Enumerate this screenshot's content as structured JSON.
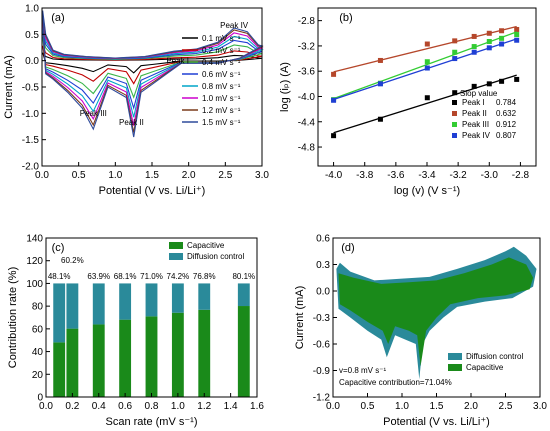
{
  "chart_data": [
    {
      "panel": "(a)",
      "type": "line",
      "xlabel": "Potential (V vs. Li/Li⁺)",
      "ylabel": "Current (mA)",
      "xlim": [
        0.0,
        3.0
      ],
      "ylim": [
        -2.0,
        1.0
      ],
      "xticks": [
        "0.0",
        "0.5",
        "1.0",
        "1.5",
        "2.0",
        "2.5",
        "3.0"
      ],
      "yticks": [
        "-2.0",
        "-1.5",
        "-1.0",
        "-0.5",
        "0.0",
        "0.5",
        "1.0"
      ],
      "legend_position": "right",
      "annotations": [
        {
          "text": "Peak IV",
          "x": 2.62,
          "y": 0.62
        },
        {
          "text": "Peak I",
          "x": 1.85,
          "y": -0.05
        },
        {
          "text": "Peak III",
          "x": 0.7,
          "y": -1.05
        },
        {
          "text": "Peak II",
          "x": 1.22,
          "y": -1.22
        }
      ],
      "series": [
        {
          "name": "0.1 mV s⁻¹",
          "color": "#000000",
          "scale": 0.16
        },
        {
          "name": "0.2 mV s⁻¹",
          "color": "#c00000",
          "scale": 0.3
        },
        {
          "name": "0.4 mV s⁻¹",
          "color": "#39b54a",
          "scale": 0.48
        },
        {
          "name": "0.6 mV s⁻¹",
          "color": "#1f3fd4",
          "scale": 0.62
        },
        {
          "name": "0.8 mV s⁻¹",
          "color": "#00a5c8",
          "scale": 0.74
        },
        {
          "name": "1.0 mV s⁻¹",
          "color": "#cc00cc",
          "scale": 0.85
        },
        {
          "name": "1.2 mV s⁻¹",
          "color": "#7a3a1a",
          "scale": 0.94
        },
        {
          "name": "1.5 mV s⁻¹",
          "color": "#2e4a9a",
          "scale": 1.0
        }
      ],
      "base_curve": {
        "upper": [
          [
            0.01,
            0.95
          ],
          [
            0.05,
            0.5
          ],
          [
            0.15,
            0.2
          ],
          [
            0.3,
            0.12
          ],
          [
            0.6,
            0.08
          ],
          [
            1.0,
            0.05
          ],
          [
            1.4,
            0.08
          ],
          [
            1.8,
            0.18
          ],
          [
            2.1,
            0.22
          ],
          [
            2.4,
            0.35
          ],
          [
            2.62,
            0.62
          ],
          [
            2.8,
            0.55
          ],
          [
            2.95,
            0.3
          ],
          [
            3.0,
            0.28
          ]
        ],
        "lower": [
          [
            3.0,
            0.28
          ],
          [
            2.7,
            0.05
          ],
          [
            2.4,
            -0.05
          ],
          [
            2.1,
            -0.05
          ],
          [
            1.9,
            -0.05
          ],
          [
            1.7,
            -0.25
          ],
          [
            1.5,
            -0.45
          ],
          [
            1.35,
            -0.6
          ],
          [
            1.25,
            -1.45
          ],
          [
            1.15,
            -0.7
          ],
          [
            0.9,
            -0.5
          ],
          [
            0.7,
            -1.3
          ],
          [
            0.55,
            -0.9
          ],
          [
            0.35,
            -0.6
          ],
          [
            0.15,
            -0.35
          ],
          [
            0.05,
            -0.25
          ],
          [
            0.01,
            0.95
          ]
        ]
      }
    },
    {
      "panel": "(b)",
      "type": "scatter",
      "xlabel": "log (v) (V s⁻¹)",
      "ylabel": "log (iₚ) (A)",
      "xlim": [
        -4.1,
        -2.7
      ],
      "ylim": [
        -5.1,
        -2.6
      ],
      "xticks": [
        "-4.0",
        "-3.8",
        "-3.6",
        "-3.4",
        "-3.2",
        "-3.0",
        "-2.8"
      ],
      "yticks": [
        "-4.8",
        "-4.4",
        "-4.0",
        "-3.6",
        "-3.2",
        "-2.8"
      ],
      "x": [
        -4.0,
        -3.699,
        -3.398,
        -3.222,
        -3.097,
        -3.0,
        -2.921,
        -2.824
      ],
      "legend_title": "Slop value",
      "legend_position": "bottom-right",
      "series": [
        {
          "name": "Peak I",
          "slope": "0.784",
          "color": "#000000",
          "values": [
            -4.62,
            -4.36,
            -4.02,
            -3.94,
            -3.84,
            -3.8,
            -3.76,
            -3.73
          ]
        },
        {
          "name": "Peak II",
          "slope": "0.632",
          "color": "#b5472b",
          "values": [
            -3.65,
            -3.43,
            -3.17,
            -3.12,
            -3.05,
            -3.0,
            -2.96,
            -2.94
          ]
        },
        {
          "name": "Peak III",
          "slope": "0.912",
          "color": "#33cc33",
          "values": [
            -4.05,
            -3.79,
            -3.45,
            -3.3,
            -3.21,
            -3.13,
            -3.08,
            -3.02
          ]
        },
        {
          "name": "Peak IV",
          "slope": "0.807",
          "color": "#1f3fd4",
          "values": [
            -4.06,
            -3.8,
            -3.55,
            -3.4,
            -3.3,
            -3.23,
            -3.17,
            -3.11
          ]
        }
      ]
    },
    {
      "panel": "(c)",
      "type": "bar",
      "xlabel": "Scan rate (mV s⁻¹)",
      "ylabel": "Contribution rate (%)",
      "xlim": [
        0.0,
        1.6
      ],
      "ylim": [
        0,
        140
      ],
      "xticks": [
        "0.0",
        "0.2",
        "0.4",
        "0.6",
        "0.8",
        "1.0",
        "1.2",
        "1.4",
        "1.6"
      ],
      "yticks": [
        "0",
        "20",
        "40",
        "60",
        "80",
        "100",
        "120",
        "140"
      ],
      "x": [
        0.1,
        0.2,
        0.4,
        0.6,
        0.8,
        1.0,
        1.2,
        1.5
      ],
      "data_labels": [
        "48.1%",
        "60.2%",
        "63.9%",
        "68.1%",
        "71.0%",
        "74.2%",
        "76.8%",
        "80.1%"
      ],
      "legend_position": "top-right",
      "series": [
        {
          "name": "Capacitive",
          "color": "#1a8a1a",
          "values": [
            48.1,
            60.2,
            63.9,
            68.1,
            71.0,
            74.2,
            76.8,
            80.1
          ]
        },
        {
          "name": "Diffusion control",
          "color": "#2a8a9a",
          "values": [
            51.9,
            39.8,
            36.1,
            31.9,
            29.0,
            25.8,
            23.2,
            19.9
          ]
        }
      ]
    },
    {
      "panel": "(d)",
      "type": "area",
      "xlabel": "Potential (V vs. Li/Li⁺)",
      "ylabel": "Current (mA)",
      "xlim": [
        0.0,
        3.0
      ],
      "ylim": [
        -1.2,
        0.6
      ],
      "xticks": [
        "0.0",
        "0.5",
        "1.0",
        "1.5",
        "2.0",
        "2.5",
        "3.0"
      ],
      "yticks": [
        "-1.2",
        "-0.9",
        "-0.6",
        "-0.3",
        "0.0",
        "0.3",
        "0.6"
      ],
      "annotation_lines": [
        "v=0.8 mV s⁻¹",
        "Capacitive contribution=71.04%"
      ],
      "legend_position": "bottom-right",
      "series": [
        {
          "name": "Diffusion control",
          "color": "#2a8a9a"
        },
        {
          "name": "Capacitive",
          "color": "#1a8a1a"
        }
      ],
      "outer_curve": [
        [
          0.05,
          0.25
        ],
        [
          0.1,
          0.32
        ],
        [
          0.25,
          0.22
        ],
        [
          0.6,
          0.12
        ],
        [
          1.0,
          0.14
        ],
        [
          1.4,
          0.16
        ],
        [
          1.8,
          0.25
        ],
        [
          2.2,
          0.35
        ],
        [
          2.5,
          0.45
        ],
        [
          2.62,
          0.5
        ],
        [
          2.8,
          0.4
        ],
        [
          2.95,
          0.25
        ],
        [
          2.9,
          0.05
        ],
        [
          2.6,
          -0.08
        ],
        [
          2.2,
          -0.12
        ],
        [
          1.8,
          -0.18
        ],
        [
          1.6,
          -0.3
        ],
        [
          1.4,
          -0.45
        ],
        [
          1.3,
          -0.6
        ],
        [
          1.25,
          -1.0
        ],
        [
          1.2,
          -0.6
        ],
        [
          1.05,
          -0.55
        ],
        [
          0.9,
          -0.5
        ],
        [
          0.78,
          -0.75
        ],
        [
          0.7,
          -0.55
        ],
        [
          0.5,
          -0.45
        ],
        [
          0.25,
          -0.3
        ],
        [
          0.08,
          -0.2
        ],
        [
          0.05,
          0.25
        ]
      ],
      "inner_curve": [
        [
          0.08,
          0.2
        ],
        [
          0.3,
          0.15
        ],
        [
          0.7,
          0.08
        ],
        [
          1.1,
          0.1
        ],
        [
          1.5,
          0.12
        ],
        [
          1.9,
          0.2
        ],
        [
          2.3,
          0.3
        ],
        [
          2.55,
          0.38
        ],
        [
          2.8,
          0.3
        ],
        [
          2.9,
          0.15
        ],
        [
          2.85,
          0.02
        ],
        [
          2.5,
          -0.05
        ],
        [
          2.1,
          -0.08
        ],
        [
          1.7,
          -0.15
        ],
        [
          1.5,
          -0.3
        ],
        [
          1.35,
          -0.45
        ],
        [
          1.27,
          -0.85
        ],
        [
          1.22,
          -0.5
        ],
        [
          1.1,
          -0.45
        ],
        [
          0.9,
          -0.4
        ],
        [
          0.8,
          -0.6
        ],
        [
          0.72,
          -0.45
        ],
        [
          0.5,
          -0.35
        ],
        [
          0.25,
          -0.22
        ],
        [
          0.1,
          -0.15
        ],
        [
          0.08,
          0.2
        ]
      ]
    }
  ]
}
